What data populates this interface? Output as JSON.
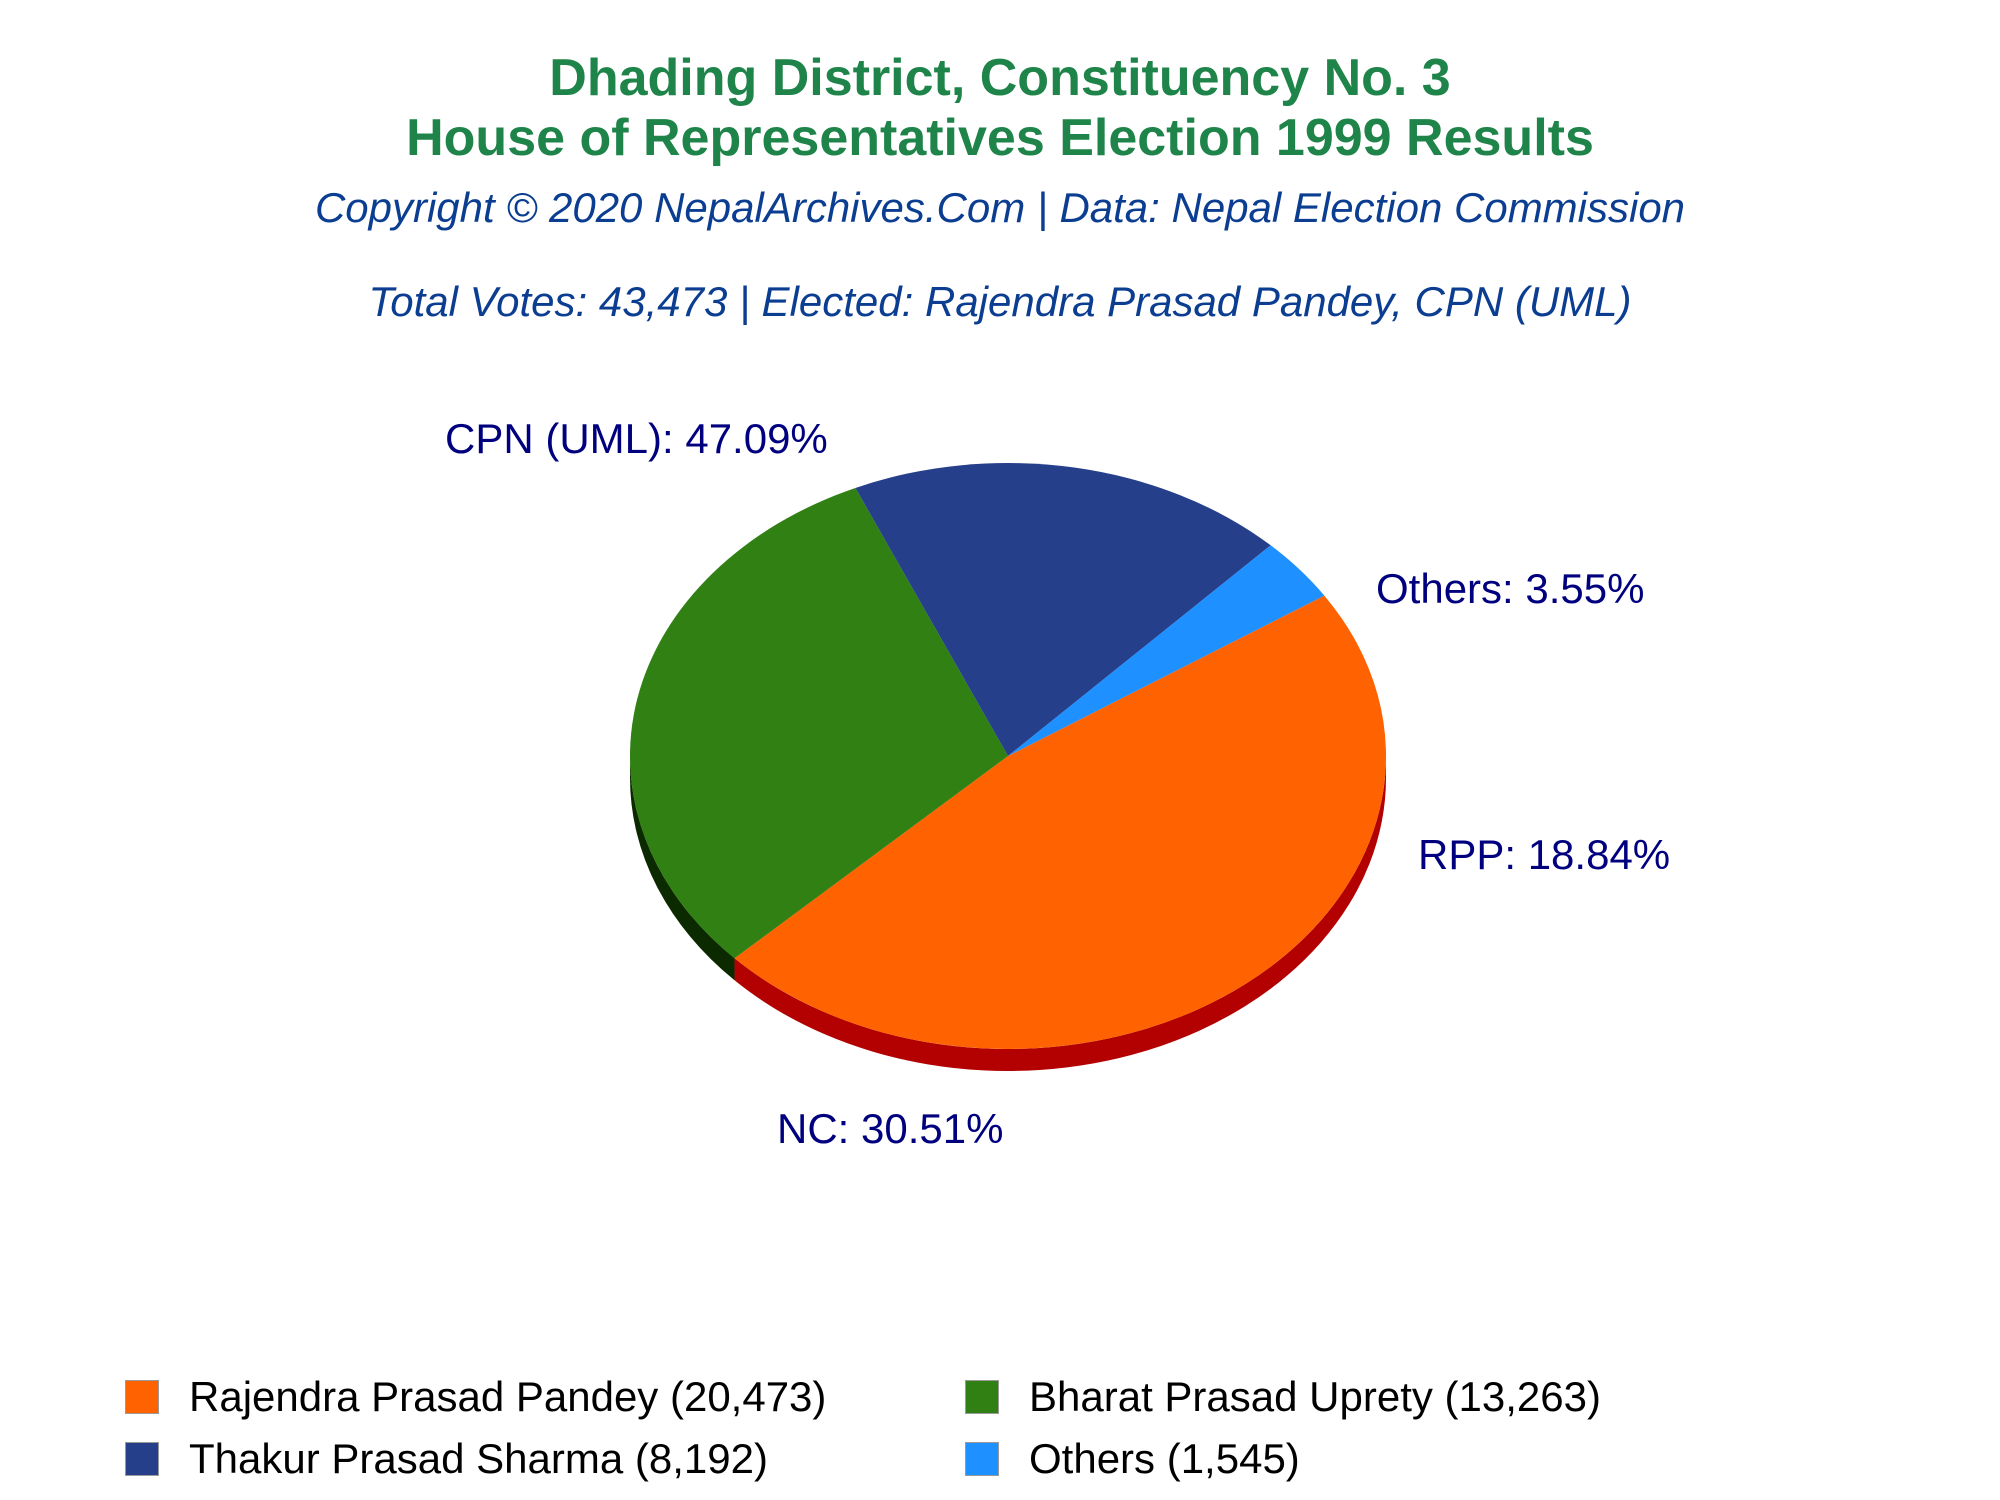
{
  "chart_data": {
    "type": "pie",
    "title": "Dhading District, Constituency No. 3",
    "title_line2": "House of Representatives Election 1999 Results",
    "subtitle": "Copyright © 2020 NepalArchives.Com | Data: Nepal Election Commission",
    "summary": "Total Votes: 43,473 | Elected: Rajendra Prasad Pandey, CPN (UML)",
    "legend_position": "bottom",
    "slices": [
      {
        "party": "CPN (UML)",
        "label": "CPN (UML): 47.09%",
        "value": 47.09,
        "legend": "Rajendra Prasad Pandey (20,473)",
        "color": "#ff6200",
        "side_color": "#b30000"
      },
      {
        "party": "NC",
        "label": "NC: 30.51%",
        "value": 30.51,
        "legend": "Bharat Prasad Uprety (13,263)",
        "color": "#308014",
        "side_color": "#0b2a00"
      },
      {
        "party": "RPP",
        "label": "RPP: 18.84%",
        "value": 18.84,
        "legend": "Thakur Prasad Sharma (8,192)",
        "color": "#263f8a",
        "side_color": "#00004a"
      },
      {
        "party": "Others",
        "label": "Others: 3.55%",
        "value": 3.55,
        "legend": "Others (1,545)",
        "color": "#1e90ff",
        "side_color": "#0a4f9e"
      }
    ],
    "label_color": "#00007f"
  }
}
